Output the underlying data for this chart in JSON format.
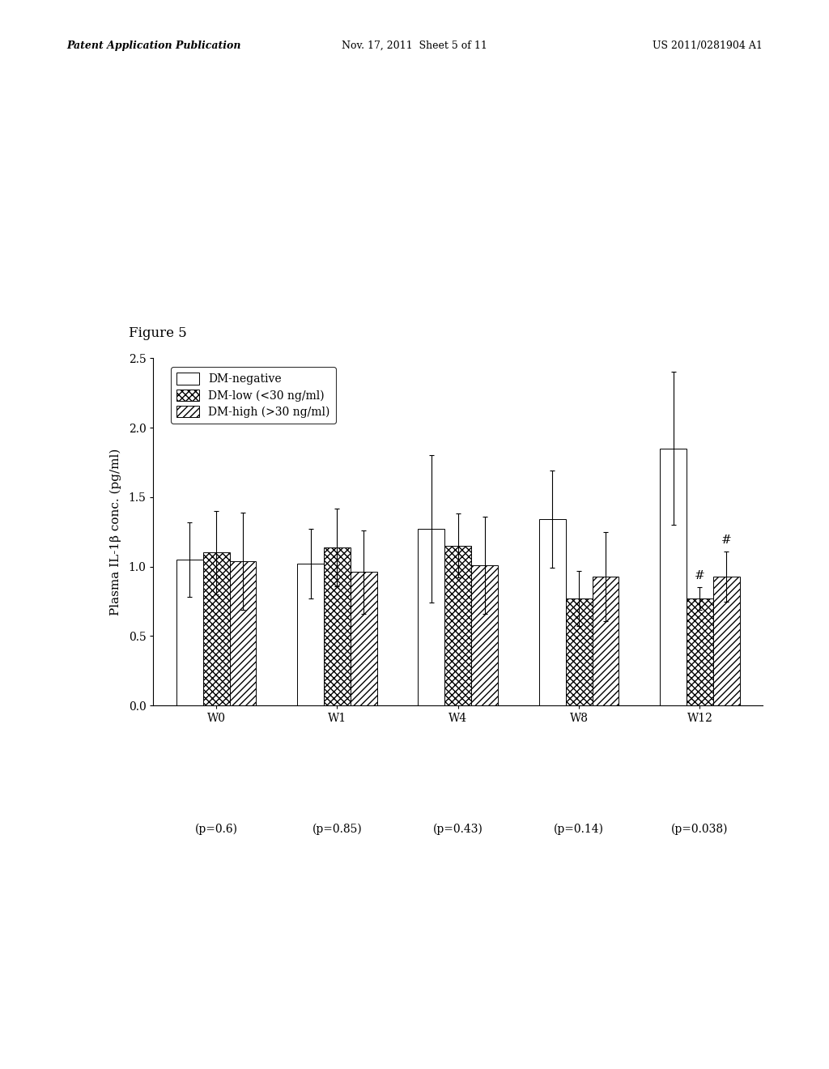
{
  "figure_label": "Figure 5",
  "series_labels": [
    "DM-negative",
    "DM-low (<30 ng/ml)",
    "DM-high (>30 ng/ml)"
  ],
  "bar_values": [
    [
      1.05,
      1.1,
      1.04
    ],
    [
      1.02,
      1.14,
      0.96
    ],
    [
      1.27,
      1.15,
      1.01
    ],
    [
      1.34,
      0.77,
      0.93
    ],
    [
      1.85,
      0.77,
      0.93
    ]
  ],
  "error_values": [
    [
      0.27,
      0.3,
      0.35
    ],
    [
      0.25,
      0.28,
      0.3
    ],
    [
      0.53,
      0.23,
      0.35
    ],
    [
      0.35,
      0.2,
      0.32
    ],
    [
      0.55,
      0.08,
      0.18
    ]
  ],
  "hash_annotations": [
    [
      false,
      false,
      false
    ],
    [
      false,
      false,
      false
    ],
    [
      false,
      false,
      false
    ],
    [
      false,
      false,
      false
    ],
    [
      false,
      true,
      true
    ]
  ],
  "ylabel": "Plasma IL-1β conc. (pg/ml)",
  "ylim": [
    0.0,
    2.5
  ],
  "yticks": [
    0.0,
    0.5,
    1.0,
    1.5,
    2.0,
    2.5
  ],
  "bar_width": 0.22,
  "background_color": "#ffffff",
  "header_left": "Patent Application Publication",
  "header_mid": "Nov. 17, 2011  Sheet 5 of 11",
  "header_right": "US 2011/0281904 A1",
  "tick_labels": [
    "W0",
    "W1",
    "W4",
    "W8",
    "W12"
  ],
  "p_labels": [
    "(p=0.6)",
    "(p=0.85)",
    "(p=0.43)",
    "(p=0.14)",
    "(p=0.038)"
  ]
}
